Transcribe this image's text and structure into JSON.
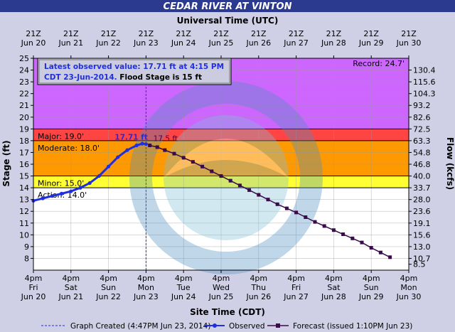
{
  "chart_data": {
    "type": "line",
    "title": "CEDAR RIVER AT VINTON",
    "top_axis_title": "Universal Time (UTC)",
    "xlabel": "Site Time (CDT)",
    "ylabel": "Stage (ft)",
    "y2label": "Flow (kcfs)",
    "ylim": [
      7,
      25
    ],
    "xlim": [
      0,
      10
    ],
    "utc_ticks": [
      {
        "t1": "21Z",
        "t2": "Jun 20"
      },
      {
        "t1": "21Z",
        "t2": "Jun 21"
      },
      {
        "t1": "21Z",
        "t2": "Jun 22"
      },
      {
        "t1": "21Z",
        "t2": "Jun 23"
      },
      {
        "t1": "21Z",
        "t2": "Jun 24"
      },
      {
        "t1": "21Z",
        "t2": "Jun 25"
      },
      {
        "t1": "21Z",
        "t2": "Jun 26"
      },
      {
        "t1": "21Z",
        "t2": "Jun 27"
      },
      {
        "t1": "21Z",
        "t2": "Jun 28"
      },
      {
        "t1": "21Z",
        "t2": "Jun 29"
      },
      {
        "t1": "21Z",
        "t2": "Jun 30"
      }
    ],
    "x_ticks": [
      {
        "t1": "4pm",
        "t2": "Fri",
        "t3": "Jun 20"
      },
      {
        "t1": "4pm",
        "t2": "Sat",
        "t3": "Jun 21"
      },
      {
        "t1": "4pm",
        "t2": "Sun",
        "t3": "Jun 22"
      },
      {
        "t1": "4pm",
        "t2": "Mon",
        "t3": "Jun 23"
      },
      {
        "t1": "4pm",
        "t2": "Tue",
        "t3": "Jun 24"
      },
      {
        "t1": "4pm",
        "t2": "Wed",
        "t3": "Jun 25"
      },
      {
        "t1": "4pm",
        "t2": "Thu",
        "t3": "Jun 26"
      },
      {
        "t1": "4pm",
        "t2": "Fri",
        "t3": "Jun 27"
      },
      {
        "t1": "4pm",
        "t2": "Sat",
        "t3": "Jun 28"
      },
      {
        "t1": "4pm",
        "t2": "Sun",
        "t3": "Jun 29"
      },
      {
        "t1": "4pm",
        "t2": "Mon",
        "t3": "Jun 30"
      }
    ],
    "y_ticks": [
      8,
      9,
      10,
      11,
      12,
      13,
      14,
      15,
      16,
      17,
      18,
      19,
      20,
      21,
      22,
      23,
      24,
      25
    ],
    "flow_ticks": [
      {
        "stage": 7.5,
        "label": "8.5"
      },
      {
        "stage": 8,
        "label": "10.7"
      },
      {
        "stage": 9,
        "label": "13.0"
      },
      {
        "stage": 10,
        "label": "15.6"
      },
      {
        "stage": 11,
        "label": "19.1"
      },
      {
        "stage": 12,
        "label": "23.6"
      },
      {
        "stage": 13,
        "label": "28.0"
      },
      {
        "stage": 14,
        "label": "33.7"
      },
      {
        "stage": 15,
        "label": "40.0"
      },
      {
        "stage": 16,
        "label": "46.8"
      },
      {
        "stage": 17,
        "label": "54.8"
      },
      {
        "stage": 18,
        "label": "63.3"
      },
      {
        "stage": 19,
        "label": "72.5"
      },
      {
        "stage": 20,
        "label": "82.6"
      },
      {
        "stage": 21,
        "label": "93.2"
      },
      {
        "stage": 22,
        "label": "104.3"
      },
      {
        "stage": 23,
        "label": "115.6"
      },
      {
        "stage": 24,
        "label": "130.4"
      }
    ],
    "bands": [
      {
        "from": 19,
        "to": 25,
        "color": "#cc66ff"
      },
      {
        "from": 18,
        "to": 19,
        "color": "#ff4444"
      },
      {
        "from": 15,
        "to": 18,
        "color": "#ff9900"
      },
      {
        "from": 14,
        "to": 15,
        "color": "#ffff33"
      },
      {
        "from": 7,
        "to": 14,
        "color": "#ffffff"
      }
    ],
    "stage_labels": [
      {
        "stage": 19,
        "text": "Major: 19.0'"
      },
      {
        "stage": 18,
        "text": "Moderate: 18.0'"
      },
      {
        "stage": 15,
        "text": "Minor: 15.0'"
      },
      {
        "stage": 14,
        "text": "Action: 14.0'"
      }
    ],
    "record_label": "Record: 24.7'",
    "annotation_line1": "Latest observed value: 17.71 ft at 4:15 PM",
    "annotation_line2a": "CDT 23-Jun-2014.",
    "annotation_line2b": " Flood Stage is 15 ft",
    "observed_label": "17.71 ft",
    "forecast_label": "17.5 ft",
    "created_x": 3,
    "series": [
      {
        "name": "Observed",
        "color": "#1f2fe0",
        "x": [
          0,
          0.25,
          0.5,
          0.75,
          1,
          1.25,
          1.5,
          1.75,
          2,
          2.25,
          2.5,
          2.75,
          2.9,
          3
        ],
        "y": [
          12.9,
          13.1,
          13.3,
          13.5,
          13.7,
          14.0,
          14.4,
          15.0,
          15.8,
          16.6,
          17.2,
          17.6,
          17.75,
          17.71
        ]
      },
      {
        "name": "Forecast (issued 1:10PM Jun 23)",
        "color": "#3b0a4a",
        "x": [
          3.1,
          3.3,
          3.5,
          3.75,
          4,
          4.25,
          4.5,
          4.75,
          5,
          5.25,
          5.5,
          5.75,
          6,
          6.25,
          6.5,
          6.75,
          7,
          7.25,
          7.5,
          7.75,
          8,
          8.25,
          8.5,
          8.75,
          9,
          9.25,
          9.5
        ],
        "y": [
          17.6,
          17.45,
          17.2,
          16.9,
          16.55,
          16.2,
          15.8,
          15.4,
          15.0,
          14.6,
          14.2,
          13.8,
          13.4,
          13.0,
          12.6,
          12.25,
          11.9,
          11.5,
          11.1,
          10.75,
          10.4,
          10.05,
          9.7,
          9.35,
          8.9,
          8.5,
          8.1
        ]
      }
    ],
    "legend": {
      "created": "Graph Created (4:47PM Jun 23, 2014)",
      "observed": "Observed",
      "forecast": "Forecast (issued 1:10PM Jun 23)"
    }
  }
}
